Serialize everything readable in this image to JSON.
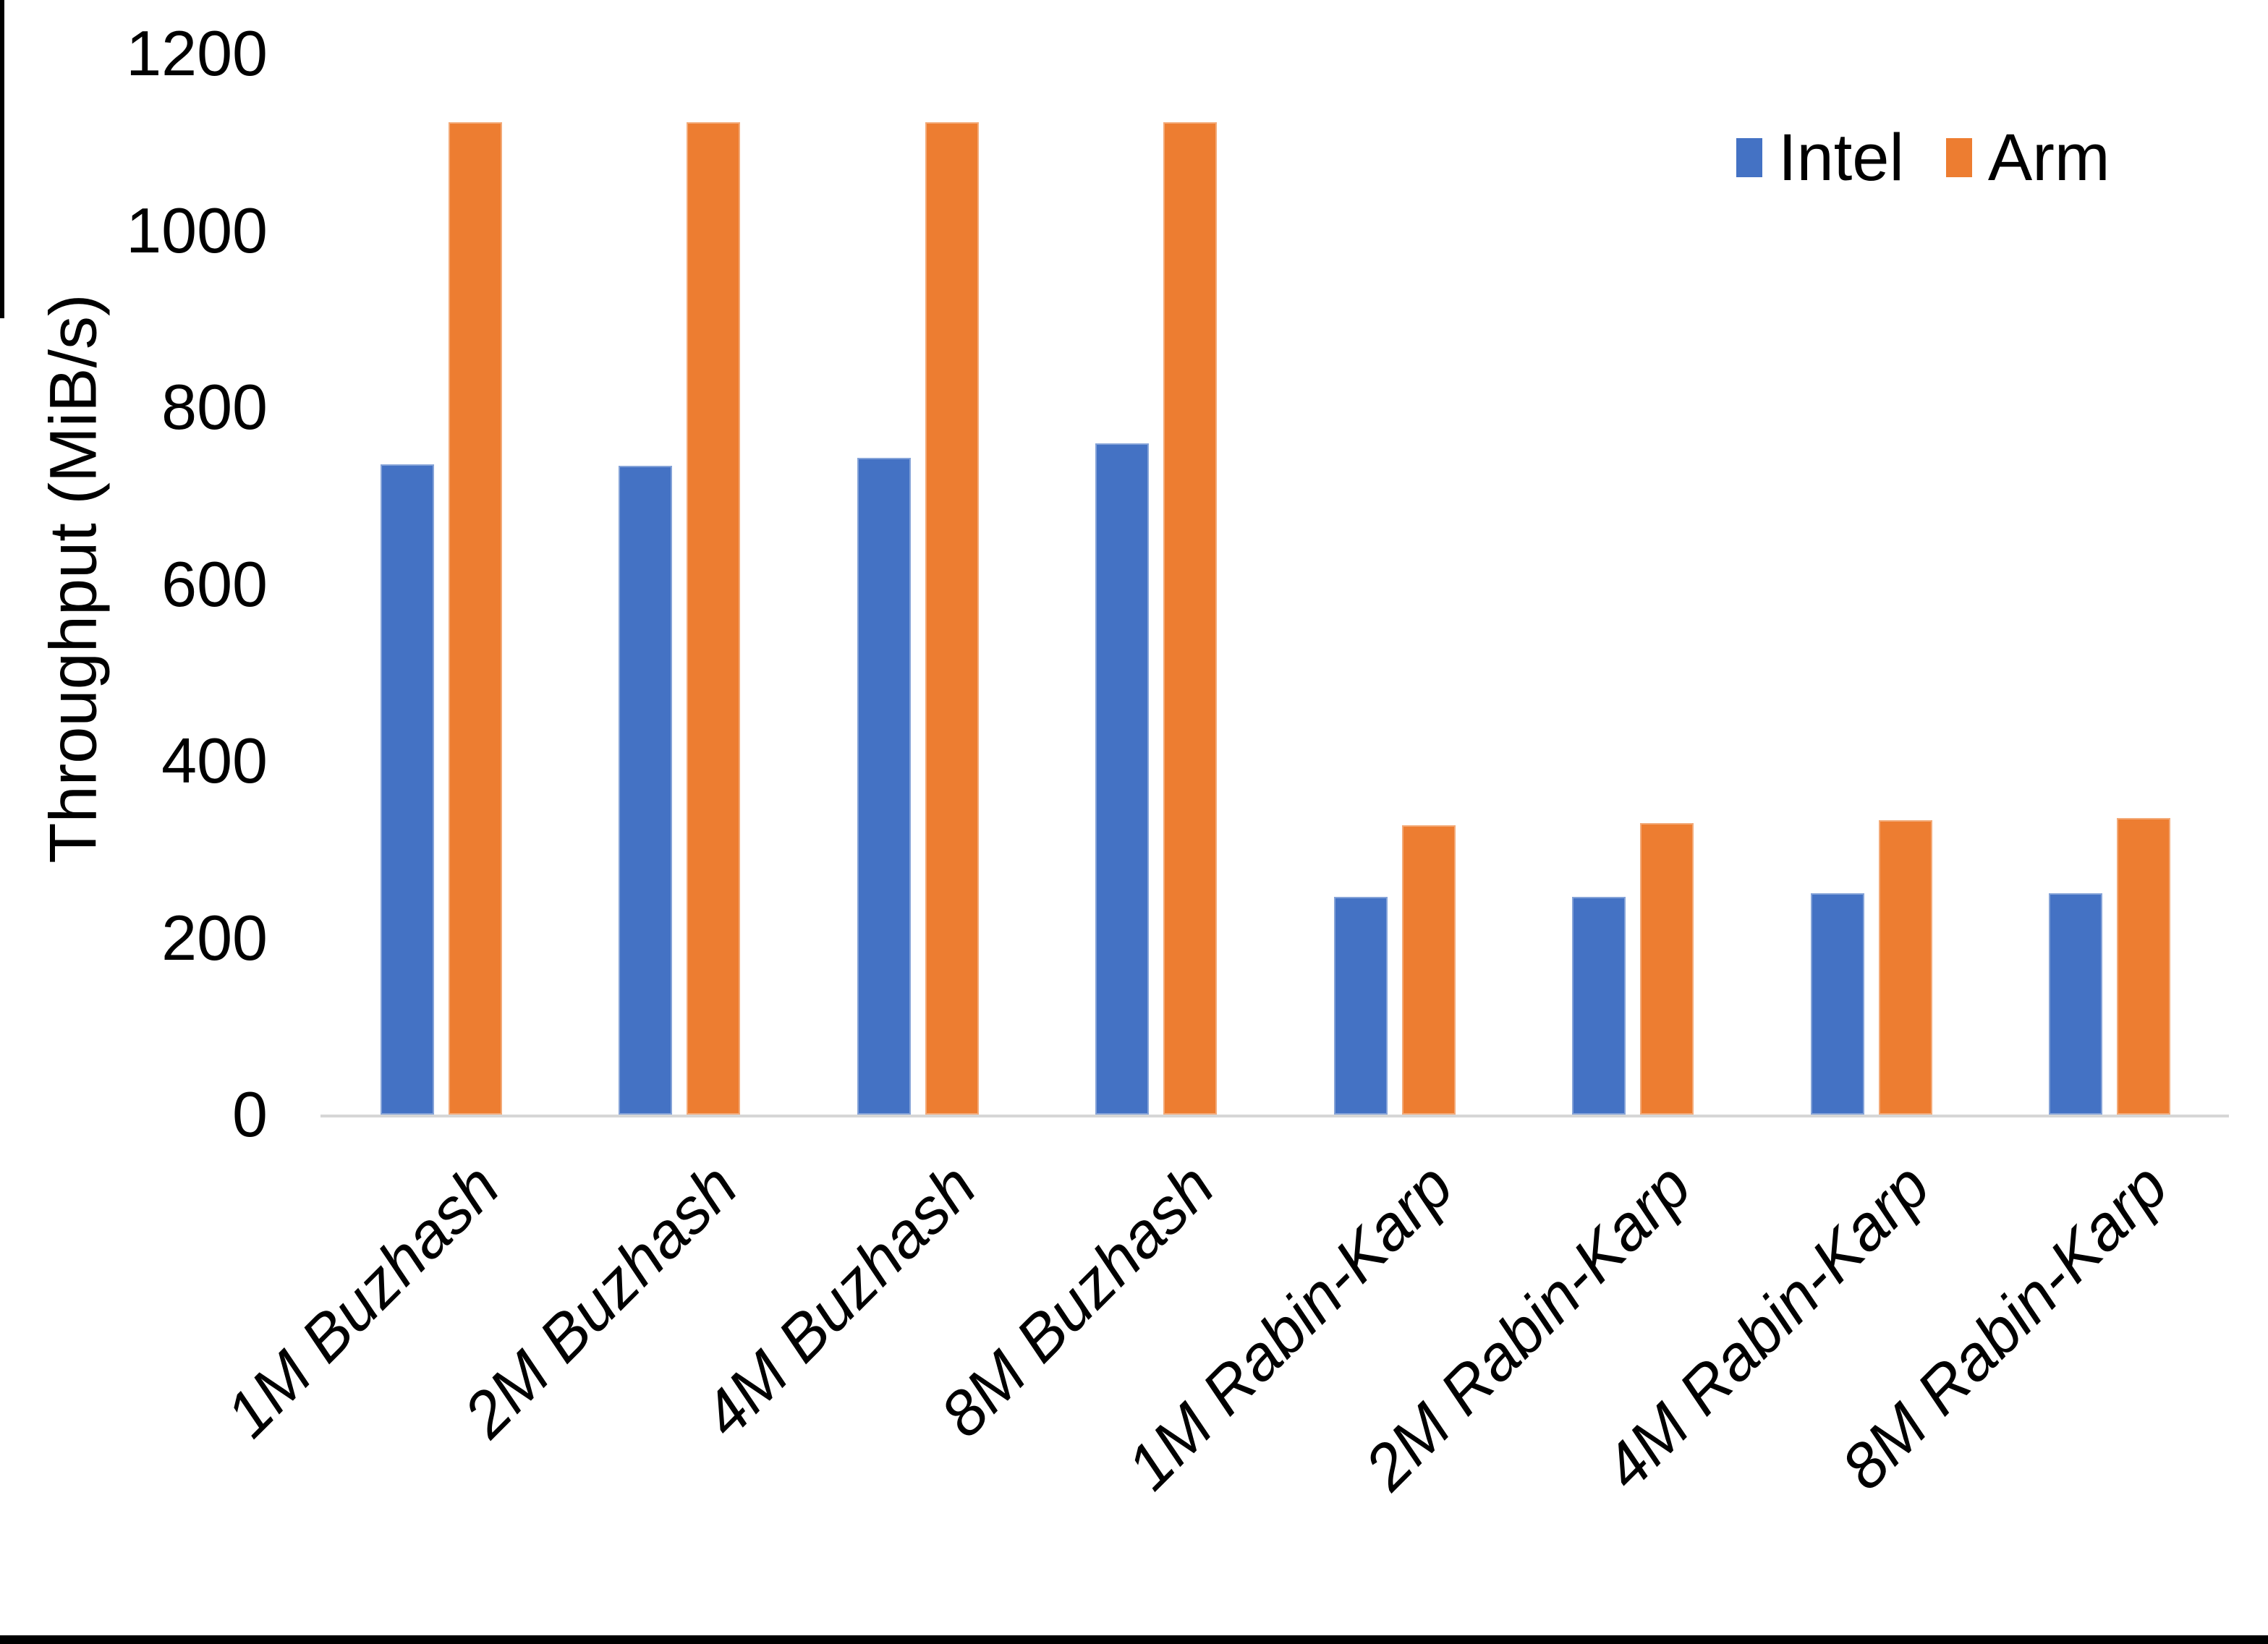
{
  "chart_data": {
    "type": "bar",
    "title": "",
    "categories": [
      "1M Buzhash",
      "2M Buzhash",
      "4M Buzhash",
      "8M Buzhash",
      "1M Rabin-Karp",
      "2M Rabin-Karp",
      "4M Rabin-Karp",
      "8M Rabin-Karp"
    ],
    "series": [
      {
        "name": "Intel",
        "color": "#4472C4",
        "values": [
          735,
          734,
          743,
          759,
          246,
          246,
          250,
          250
        ]
      },
      {
        "name": "Arm",
        "color": "#ED7D31",
        "values": [
          1122,
          1122,
          1122,
          1122,
          327,
          330,
          333,
          335
        ]
      }
    ],
    "xlabel": "",
    "ylabel": "Throughput (MiB/s)",
    "ylim": [
      0,
      1200
    ],
    "yticks": [
      0,
      200,
      400,
      600,
      800,
      1000,
      1200
    ],
    "grid": false,
    "legend_position": "top-right"
  },
  "legend": {
    "items": [
      {
        "label": "Intel",
        "color": "#4472C4"
      },
      {
        "label": "Arm",
        "color": "#ED7D31"
      }
    ]
  },
  "axis": {
    "ylabel": "Throughput (MiB/s)",
    "tick_labels": [
      "0",
      "200",
      "400",
      "600",
      "800",
      "1000",
      "1200"
    ]
  }
}
